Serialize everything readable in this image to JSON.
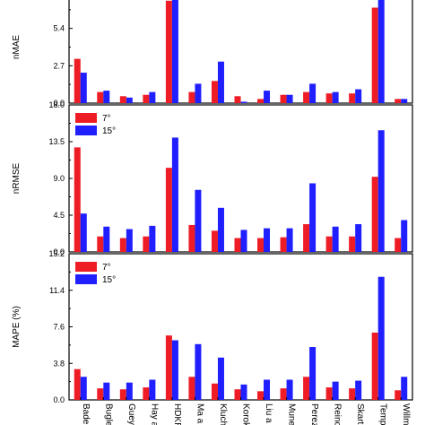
{
  "chart_data": {
    "type": "bar",
    "categories": [
      "Badescu",
      "Bugler",
      "Gueymard",
      "Hay and Davies",
      "HDKR",
      "Ma and Iqbal",
      "Klucher",
      "Koronakis",
      "Liu and Jordan",
      "Muneer",
      "Perez",
      "Reindl",
      "Skartveit and Olseth",
      "Temps and Coulson",
      "Willmott"
    ],
    "category_labels": [
      "Bade:",
      "Bugle",
      "Guey",
      "Hay a",
      "HDKR",
      "Ma a",
      "Kluch",
      "Korok",
      "Liu a",
      "Mune",
      "Perez",
      "Reinc",
      "Skart",
      "Temp",
      "Willm"
    ],
    "colors": {
      "7°": "#ee1c25",
      "15°": "#1f1fff"
    },
    "panels": [
      {
        "ylabel": "nMAE (%)",
        "ylabel_visible": "nMAE",
        "ylim": [
          0,
          8.1
        ],
        "yticks": [
          0.0,
          2.7,
          5.4
        ],
        "ytick_labels": [
          "0.0",
          "2.7",
          "5.4"
        ],
        "top_label": "",
        "legend": false,
        "series": [
          {
            "name": "7°",
            "values": [
              3.2,
              0.8,
              0.5,
              0.6,
              7.4,
              0.8,
              1.6,
              0.5,
              0.3,
              0.6,
              0.8,
              0.7,
              0.7,
              6.9,
              0.3
            ]
          },
          {
            "name": "15°",
            "values": [
              2.2,
              0.9,
              0.4,
              0.8,
              7.9,
              1.4,
              3.0,
              0.1,
              0.9,
              0.6,
              1.4,
              0.8,
              1.0,
              8.1,
              0.3
            ]
          }
        ]
      },
      {
        "ylabel": "nRMSE (%)",
        "ylabel_visible": "nRMSE",
        "ylim": [
          0,
          18.0
        ],
        "yticks": [
          0.0,
          4.5,
          9.0,
          13.5
        ],
        "ytick_labels": [
          "0.0",
          "4.5",
          "9.0",
          "13.5"
        ],
        "top_label": "18.0",
        "legend": true,
        "series": [
          {
            "name": "7°",
            "values": [
              12.8,
              1.9,
              1.7,
              1.9,
              10.3,
              3.3,
              2.6,
              1.7,
              1.7,
              1.8,
              3.4,
              1.9,
              1.9,
              9.2,
              1.7
            ]
          },
          {
            "name": "15°",
            "values": [
              4.7,
              3.1,
              2.8,
              3.2,
              14.0,
              7.6,
              5.4,
              2.7,
              2.9,
              2.9,
              8.4,
              3.1,
              3.4,
              14.9,
              3.9
            ]
          }
        ]
      },
      {
        "ylabel": "MAPE (%)",
        "ylabel_visible": "MAPE (%)",
        "ylim": [
          0,
          15.2
        ],
        "yticks": [
          0.0,
          3.8,
          7.6,
          11.4
        ],
        "ytick_labels": [
          "0.0",
          "3.8",
          "7.6",
          "11.4"
        ],
        "top_label": "15.2",
        "legend": true,
        "series": [
          {
            "name": "7°",
            "values": [
              3.2,
              1.2,
              1.1,
              1.3,
              6.7,
              2.4,
              1.7,
              1.1,
              0.9,
              1.2,
              2.4,
              1.3,
              1.2,
              7.0,
              1.0
            ]
          },
          {
            "name": "15°",
            "values": [
              2.4,
              1.8,
              1.8,
              2.1,
              6.2,
              5.8,
              4.4,
              1.6,
              2.1,
              2.1,
              5.5,
              1.9,
              2.0,
              12.8,
              2.4
            ]
          }
        ]
      }
    ],
    "legend_labels": [
      "7°",
      "15°"
    ],
    "grid": false
  }
}
